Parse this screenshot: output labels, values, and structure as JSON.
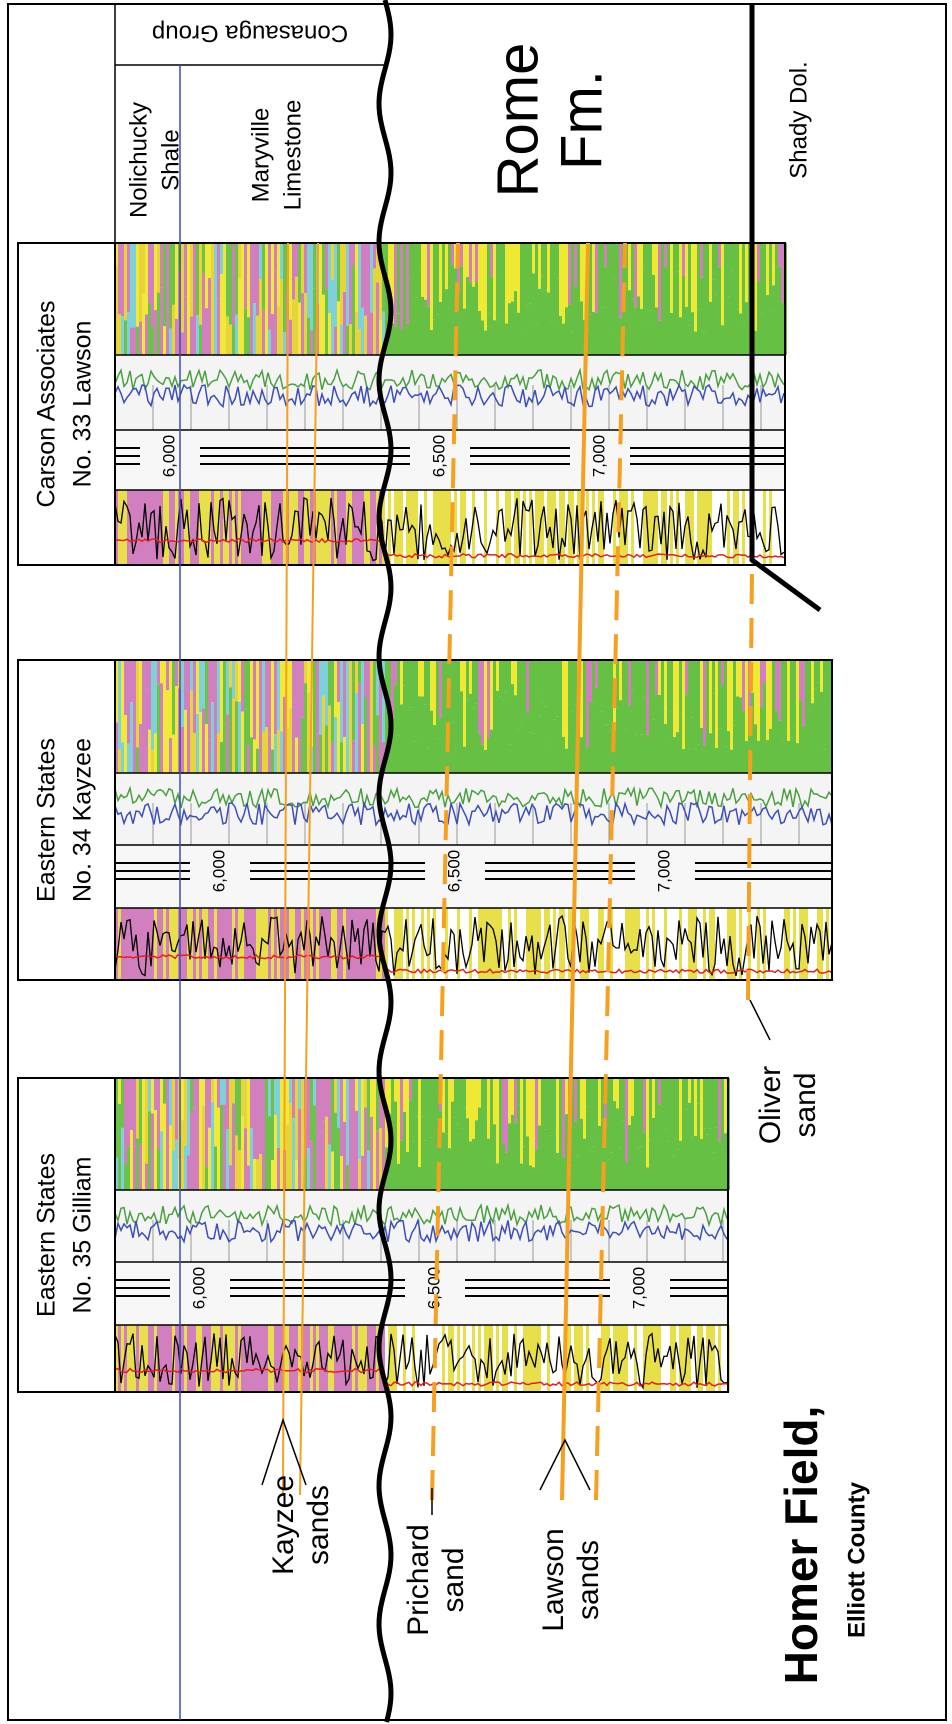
{
  "formations": {
    "conasauga": "Conasauga Group",
    "nolichucky": [
      "Nolichucky",
      "Shale"
    ],
    "maryville": [
      "Maryville",
      "Limestone"
    ],
    "rome": [
      "Rome",
      "Fm."
    ],
    "shady": "Shady Dol."
  },
  "wells": [
    {
      "name": [
        "Carson Associates",
        "No. 33 Lawson"
      ],
      "depths": [
        "6,000",
        "6,500",
        "7,000"
      ]
    },
    {
      "name": [
        "Eastern States",
        "No. 34 Kayzee"
      ],
      "depths": [
        "6,000",
        "6,500",
        "7,000"
      ]
    },
    {
      "name": [
        "Eastern States",
        "No. 35 Gilliam"
      ],
      "depths": [
        "6,000",
        "6,500",
        "7,000"
      ]
    }
  ],
  "sands": {
    "kayzee": [
      "Kayzee",
      "sands"
    ],
    "prichard": [
      "Prichard",
      "sand"
    ],
    "lawson": [
      "Lawson",
      "sands"
    ],
    "oliver": [
      "Oliver",
      "sand"
    ]
  },
  "title": "Homer Field,",
  "subtitle": "Elliott County"
}
